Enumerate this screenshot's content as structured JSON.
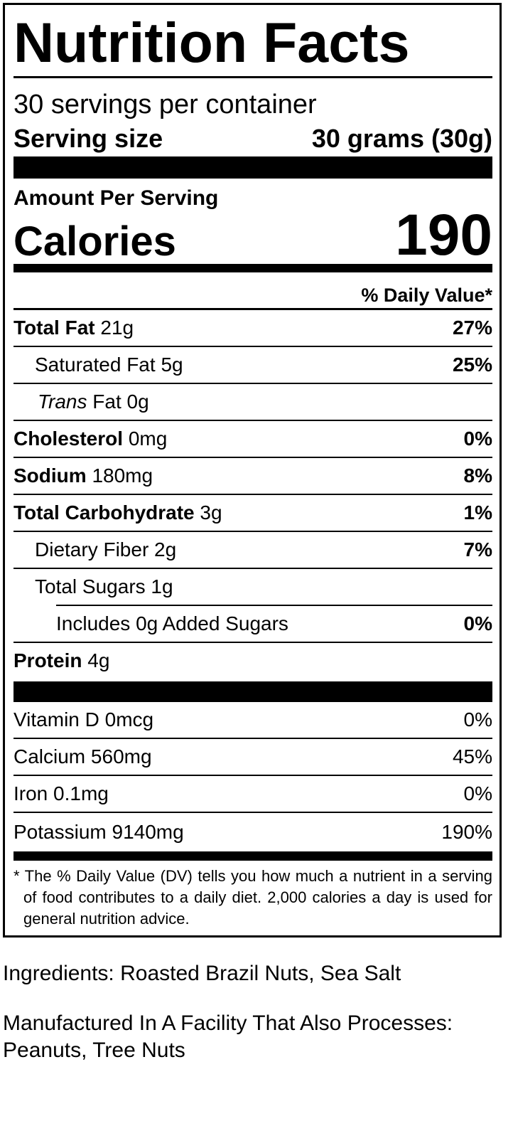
{
  "label": {
    "title": "Nutrition Facts",
    "servings_per_container": "30 servings per container",
    "serving_size_label": "Serving size",
    "serving_size_value": "30 grams (30g)",
    "amount_per_serving": "Amount Per Serving",
    "calories_label": "Calories",
    "calories_value": "190",
    "daily_value_header": "% Daily Value*",
    "nutrients": [
      {
        "name": "Total Fat",
        "amount": "21g",
        "dv": "27%"
      },
      {
        "name": "Saturated Fat",
        "amount": "5g",
        "dv": "25%"
      },
      {
        "name": "Trans",
        "name_suffix": "Fat",
        "amount": "0g",
        "dv": ""
      },
      {
        "name": "Cholesterol",
        "amount": "0mg",
        "dv": "0%"
      },
      {
        "name": "Sodium",
        "amount": "180mg",
        "dv": "8%"
      },
      {
        "name": "Total Carbohydrate",
        "amount": "3g",
        "dv": "1%"
      },
      {
        "name": "Dietary Fiber",
        "amount": "2g",
        "dv": "7%"
      },
      {
        "name": "Total Sugars",
        "amount": "1g",
        "dv": ""
      },
      {
        "name": "Includes 0g Added Sugars",
        "amount": "",
        "dv": "0%"
      },
      {
        "name": "Protein",
        "amount": "4g",
        "dv": ""
      }
    ],
    "vitamins": [
      {
        "name": "Vitamin D",
        "amount": "0mcg",
        "dv": "0%"
      },
      {
        "name": "Calcium",
        "amount": "560mg",
        "dv": "45%"
      },
      {
        "name": "Iron",
        "amount": "0.1mg",
        "dv": "0%"
      },
      {
        "name": "Potassium",
        "amount": "9140mg",
        "dv": "190%"
      }
    ],
    "footnote": "* The % Daily Value (DV) tells you how much a nutrient in a serving of food contributes to a daily diet. 2,000 calories a day is used for general nutrition advice."
  },
  "ingredients": "Ingredients: Roasted Brazil Nuts, Sea Salt",
  "allergen_statement": "Manufactured In A Facility That Also Processes: Peanuts, Tree Nuts"
}
